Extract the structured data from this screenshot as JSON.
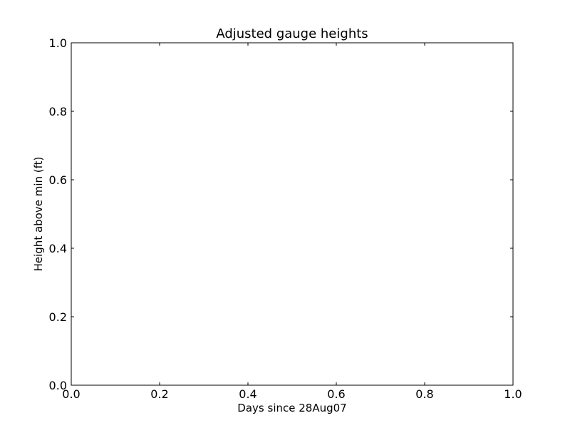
{
  "chart_data": {
    "type": "line",
    "title": "Adjusted gauge heights",
    "xlabel": "Days since 28Aug07",
    "ylabel": "Height above min (ft)",
    "xlim": [
      0.0,
      1.0
    ],
    "ylim": [
      0.0,
      1.0
    ],
    "x_ticks": [
      "0.0",
      "0.2",
      "0.4",
      "0.6",
      "0.8",
      "1.0"
    ],
    "y_ticks": [
      "0.0",
      "0.2",
      "0.4",
      "0.6",
      "0.8",
      "1.0"
    ],
    "grid": false,
    "series": []
  }
}
